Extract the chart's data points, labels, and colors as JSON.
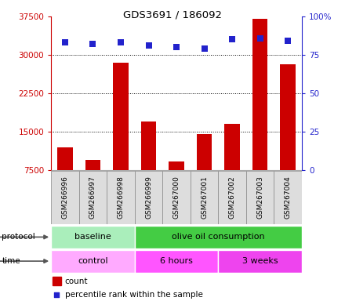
{
  "title": "GDS3691 / 186092",
  "samples": [
    "GSM266996",
    "GSM266997",
    "GSM266998",
    "GSM266999",
    "GSM267000",
    "GSM267001",
    "GSM267002",
    "GSM267003",
    "GSM267004"
  ],
  "counts": [
    12000,
    9500,
    28500,
    17000,
    9200,
    14500,
    16500,
    37000,
    28200
  ],
  "percentile_ranks": [
    83,
    82,
    83,
    81,
    80,
    79,
    85,
    86,
    84
  ],
  "ylim_left": [
    7500,
    37500
  ],
  "ylim_right": [
    0,
    100
  ],
  "yticks_left": [
    7500,
    15000,
    22500,
    30000,
    37500
  ],
  "yticks_right": [
    0,
    25,
    50,
    75,
    100
  ],
  "ytick_right_labels": [
    "0",
    "25",
    "50",
    "75",
    "100%"
  ],
  "bar_color": "#cc0000",
  "dot_color": "#2222cc",
  "protocol_groups": [
    {
      "label": "baseline",
      "start": 0,
      "end": 3,
      "color": "#aaeebb"
    },
    {
      "label": "olive oil consumption",
      "start": 3,
      "end": 9,
      "color": "#44cc44"
    }
  ],
  "time_groups": [
    {
      "label": "control",
      "start": 0,
      "end": 3,
      "color": "#ffaaff"
    },
    {
      "label": "6 hours",
      "start": 3,
      "end": 6,
      "color": "#ff55ff"
    },
    {
      "label": "3 weeks",
      "start": 6,
      "end": 9,
      "color": "#ee44ee"
    }
  ],
  "legend_count_label": "count",
  "legend_pct_label": "percentile rank within the sample",
  "left_axis_color": "#cc0000",
  "right_axis_color": "#2222cc",
  "background_color": "#ffffff"
}
